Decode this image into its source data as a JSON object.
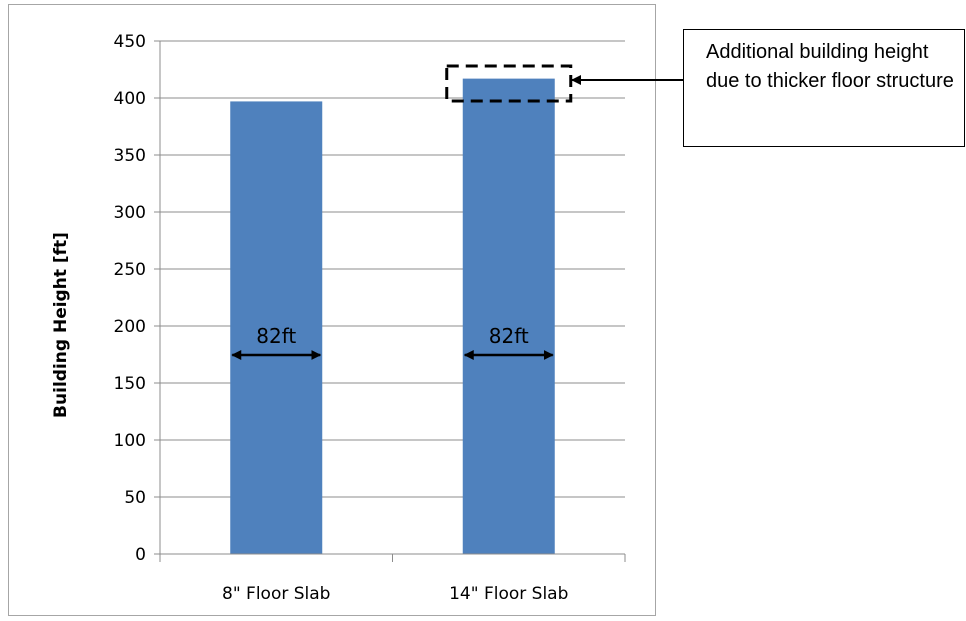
{
  "chart_data": {
    "type": "bar",
    "categories": [
      "8\" Floor Slab",
      "14\" Floor Slab"
    ],
    "values": [
      397,
      417
    ],
    "title": "",
    "xlabel": "",
    "ylabel": "Building Height [ft]",
    "ylim": [
      0,
      450
    ],
    "yticks": [
      0,
      50,
      100,
      150,
      200,
      250,
      300,
      350,
      400,
      450
    ],
    "grid": true,
    "bar_color": "#4f81bd",
    "annotations": {
      "width_labels": [
        "82ft",
        "82ft"
      ],
      "callout_text": "Additional building height due to thicker floor structure"
    }
  }
}
